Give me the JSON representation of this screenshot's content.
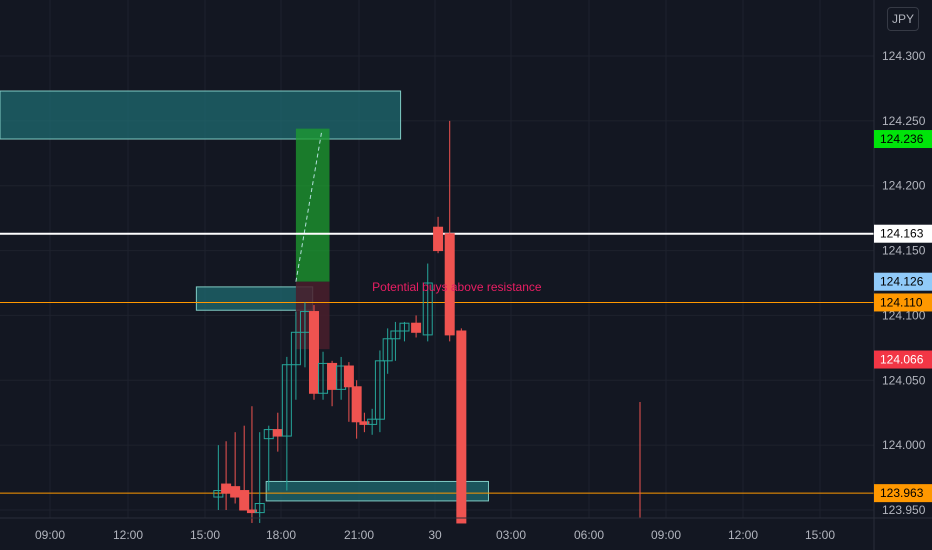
{
  "currency_label": "JPY",
  "colors": {
    "background": "#131722",
    "grid": "#1e222d",
    "bull": "#26a69a",
    "bear": "#ef5350",
    "zone_fill": "#1f6b70",
    "zone_border": "#80cbc4",
    "white_line": "#ffffff",
    "orange_line": "#ff9800",
    "long_profit": "#1e9e2f",
    "long_stop": "#4a1f2c",
    "annotation": "#e91e63"
  },
  "chart_data": {
    "type": "candlestick",
    "y_ticks": [
      "124.300",
      "124.250",
      "124.200",
      "124.150",
      "124.100",
      "124.050",
      "124.000",
      "123.950"
    ],
    "x_ticks": [
      "09:00",
      "12:00",
      "15:00",
      "18:00",
      "21:00",
      "30",
      "03:00",
      "06:00",
      "09:00",
      "12:00",
      "15:00"
    ],
    "ylim": [
      123.945,
      124.31
    ],
    "price_badges": [
      {
        "label": "124.236",
        "value": 124.236,
        "bg": "#00e40a",
        "fg": "#000000"
      },
      {
        "label": "124.163",
        "value": 124.163,
        "bg": "#ffffff",
        "fg": "#000000"
      },
      {
        "label": "124.126",
        "value": 124.126,
        "bg": "#90caf9",
        "fg": "#000000"
      },
      {
        "label": "124.110",
        "value": 124.11,
        "bg": "#ff9800",
        "fg": "#000000"
      },
      {
        "label": "124.066",
        "value": 124.066,
        "bg": "#f23645",
        "fg": "#ffffff"
      },
      {
        "label": "123.963",
        "value": 123.963,
        "bg": "#ff9800",
        "fg": "#000000"
      }
    ],
    "horizontal_lines": [
      {
        "value": 124.163,
        "color": "#ffffff",
        "width": 2
      },
      {
        "value": 124.11,
        "color": "#ff9800",
        "width": 1
      },
      {
        "value": 123.963,
        "color": "#ff9800",
        "width": 1
      }
    ],
    "zones": [
      {
        "top": 124.273,
        "bottom": 124.236,
        "x_start": -1.0,
        "x_end": 21.4
      },
      {
        "top": 124.122,
        "bottom": 124.104,
        "x_start": 13.5,
        "x_end": 18.0
      },
      {
        "top": 123.972,
        "bottom": 123.957,
        "x_start": 16.2,
        "x_end": 24.8
      }
    ],
    "long_position": {
      "x_start": 17.35,
      "x_end": 18.65,
      "target": 124.244,
      "entry": 124.126,
      "stop": 124.074
    },
    "annotation": {
      "text": "Potential buys above resistance",
      "x": 20.3,
      "value": 124.122
    },
    "candles": [
      {
        "t": 14.35,
        "o": 123.96,
        "h": 124.0,
        "l": 123.95,
        "c": 123.965
      },
      {
        "t": 14.65,
        "o": 123.97,
        "h": 124.003,
        "l": 123.95,
        "c": 123.963
      },
      {
        "t": 15.0,
        "o": 123.968,
        "h": 124.01,
        "l": 123.955,
        "c": 123.96
      },
      {
        "t": 15.35,
        "o": 123.965,
        "h": 124.015,
        "l": 123.95,
        "c": 123.95
      },
      {
        "t": 15.65,
        "o": 123.95,
        "h": 124.03,
        "l": 123.94,
        "c": 123.948
      },
      {
        "t": 15.95,
        "o": 123.948,
        "h": 124.01,
        "l": 123.94,
        "c": 123.955
      },
      {
        "t": 16.3,
        "o": 124.005,
        "h": 124.015,
        "l": 123.965,
        "c": 124.012
      },
      {
        "t": 16.65,
        "o": 124.012,
        "h": 124.025,
        "l": 123.995,
        "c": 124.007
      },
      {
        "t": 17.0,
        "o": 124.007,
        "h": 124.068,
        "l": 123.965,
        "c": 124.062
      },
      {
        "t": 17.35,
        "o": 124.062,
        "h": 124.103,
        "l": 124.035,
        "c": 124.087
      },
      {
        "t": 17.7,
        "o": 124.087,
        "h": 124.11,
        "l": 124.06,
        "c": 124.103
      },
      {
        "t": 18.05,
        "o": 124.103,
        "h": 124.108,
        "l": 124.035,
        "c": 124.04
      },
      {
        "t": 18.4,
        "o": 124.04,
        "h": 124.072,
        "l": 124.035,
        "c": 124.063
      },
      {
        "t": 18.75,
        "o": 124.063,
        "h": 124.065,
        "l": 124.03,
        "c": 124.043
      },
      {
        "t": 19.1,
        "o": 124.043,
        "h": 124.068,
        "l": 124.035,
        "c": 124.061
      },
      {
        "t": 19.4,
        "o": 124.061,
        "h": 124.064,
        "l": 124.018,
        "c": 124.045
      },
      {
        "t": 19.7,
        "o": 124.045,
        "h": 124.05,
        "l": 124.005,
        "c": 124.018
      },
      {
        "t": 20.0,
        "o": 124.018,
        "h": 124.025,
        "l": 124.01,
        "c": 124.016
      },
      {
        "t": 20.3,
        "o": 124.016,
        "h": 124.028,
        "l": 124.008,
        "c": 124.02
      },
      {
        "t": 20.6,
        "o": 124.02,
        "h": 124.073,
        "l": 124.01,
        "c": 124.065
      },
      {
        "t": 20.9,
        "o": 124.065,
        "h": 124.09,
        "l": 124.055,
        "c": 124.082
      },
      {
        "t": 21.2,
        "o": 124.082,
        "h": 124.095,
        "l": 124.065,
        "c": 124.088
      },
      {
        "t": 21.55,
        "o": 124.088,
        "h": 124.095,
        "l": 124.08,
        "c": 124.094
      },
      {
        "t": 22.0,
        "o": 124.094,
        "h": 124.1,
        "l": 124.083,
        "c": 124.087
      },
      {
        "t": 22.45,
        "o": 124.085,
        "h": 124.14,
        "l": 124.08,
        "c": 124.125
      }
    ]
  }
}
